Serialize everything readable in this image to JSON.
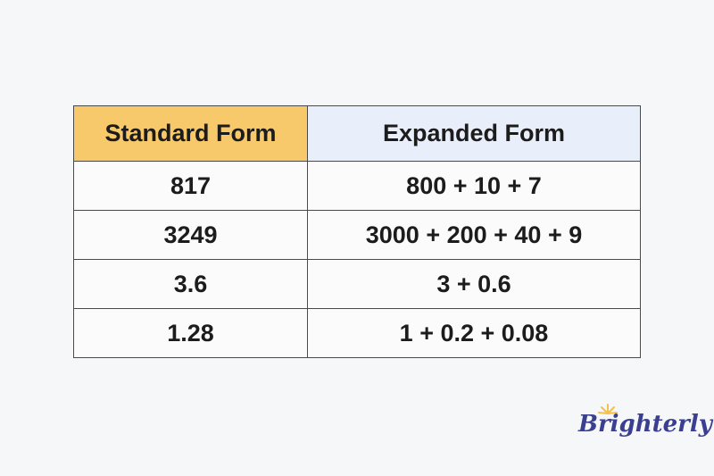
{
  "table": {
    "headers": [
      "Standard Form",
      "Expanded Form"
    ],
    "rows": [
      [
        "817",
        "800 + 10 + 7"
      ],
      [
        "3249",
        "3000 + 200 + 40 + 9"
      ],
      [
        "3.6",
        "3 + 0.6"
      ],
      [
        "1.28",
        "1 + 0.2 + 0.08"
      ]
    ]
  },
  "logo": {
    "text": "Brighterly"
  },
  "colors": {
    "header_left": "#f8c96b",
    "header_right": "#e9eefb",
    "logo": "#3a3f8f",
    "sun": "#f2c14e"
  }
}
